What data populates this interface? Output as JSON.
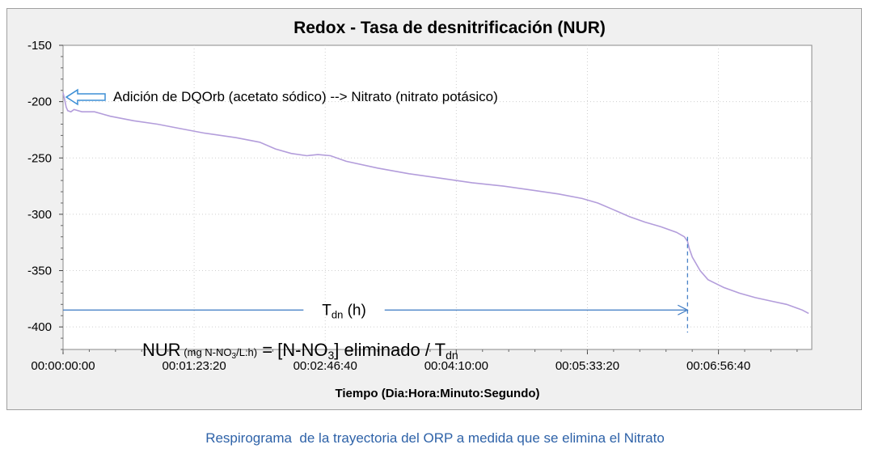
{
  "chart_data": {
    "type": "line",
    "title": "Redox - Tasa de desnitrificación (NUR)",
    "xlabel": "Tiempo (Dia:Hora:Minuto:Segundo)",
    "ylabel": "",
    "ylim": [
      -420,
      -150
    ],
    "yticks": [
      -150,
      -200,
      -250,
      -300,
      -350,
      -400
    ],
    "xlim": [
      "00:00:00:00",
      "00:07:56:00"
    ],
    "xticks": [
      "00:00:00:00",
      "00:01:23:20",
      "00:02:46:40",
      "00:04:10:00",
      "00:05:33:20",
      "00:06:56:40"
    ],
    "grid": true,
    "series": [
      {
        "name": "",
        "color": "#b39ddb",
        "points": [
          [
            "00:00:00:00",
            -192
          ],
          [
            "00:00:01:00",
            -198
          ],
          [
            "00:00:02:00",
            -205
          ],
          [
            "00:00:03:00",
            -208
          ],
          [
            "00:00:05:00",
            -209
          ],
          [
            "00:00:07:00",
            -207
          ],
          [
            "00:00:12:00",
            -209
          ],
          [
            "00:00:20:00",
            -209
          ],
          [
            "00:00:30:00",
            -213
          ],
          [
            "00:00:45:00",
            -217
          ],
          [
            "00:01:00:00",
            -220
          ],
          [
            "00:01:15:00",
            -224
          ],
          [
            "00:01:30:00",
            -228
          ],
          [
            "00:01:50:00",
            -232
          ],
          [
            "00:02:05:00",
            -236
          ],
          [
            "00:02:15:00",
            -242
          ],
          [
            "00:02:25:00",
            -246
          ],
          [
            "00:02:35:00",
            -248
          ],
          [
            "00:02:42:00",
            -247
          ],
          [
            "00:02:50:00",
            -248
          ],
          [
            "00:03:00:00",
            -253
          ],
          [
            "00:03:20:00",
            -259
          ],
          [
            "00:03:40:00",
            -264
          ],
          [
            "00:04:00:00",
            -268
          ],
          [
            "00:04:20:00",
            -272
          ],
          [
            "00:04:40:00",
            -275
          ],
          [
            "00:05:00:00",
            -279
          ],
          [
            "00:05:15:00",
            -282
          ],
          [
            "00:05:30:00",
            -286
          ],
          [
            "00:05:40:00",
            -290
          ],
          [
            "00:05:50:00",
            -296
          ],
          [
            "00:06:00:00",
            -302
          ],
          [
            "00:06:10:00",
            -307
          ],
          [
            "00:06:20:00",
            -311
          ],
          [
            "00:06:30:00",
            -316
          ],
          [
            "00:06:35:00",
            -320
          ],
          [
            "00:06:37:00",
            -324
          ],
          [
            "00:06:38:00",
            -330
          ],
          [
            "00:06:40:00",
            -338
          ],
          [
            "00:06:45:00",
            -350
          ],
          [
            "00:06:50:00",
            -358
          ],
          [
            "00:07:00:00",
            -365
          ],
          [
            "00:07:10:00",
            -370
          ],
          [
            "00:07:20:00",
            -374
          ],
          [
            "00:07:30:00",
            -377
          ],
          [
            "00:07:40:00",
            -380
          ],
          [
            "00:07:50:00",
            -385
          ],
          [
            "00:07:54:00",
            -388
          ]
        ]
      }
    ],
    "annotations": {
      "addition_note": "Adición de DQOrb (acetato sódico) --> Nitrato (nitrato potásico)",
      "addition_time": "00:00:00:00",
      "addition_value": -196,
      "tdn_label_main": "T",
      "tdn_label_sub": "dn",
      "tdn_label_unit": " (h)",
      "tdn_start": "00:00:00:00",
      "tdn_end": "00:06:37:00",
      "tdn_level": -385,
      "tdn_marker_from": -320,
      "tdn_marker_to": -405,
      "nur_parts": [
        "NUR",
        " (mg N-NO",
        "3",
        "/L.h)",
        " = [N-NO",
        "3",
        "] eliminado / T",
        "dn"
      ]
    }
  },
  "caption": "Respirograma  de la trayectoria del ORP a medida que se elimina el Nitrato"
}
